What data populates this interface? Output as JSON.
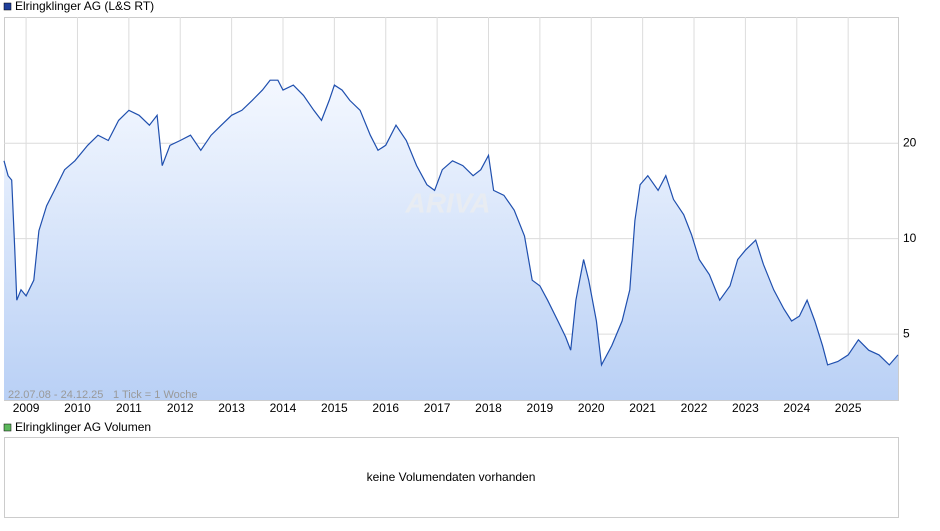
{
  "chart_data": {
    "type": "line",
    "series": [
      {
        "name": "Elringklinger AG (L&S RT)",
        "color": "#1f4fae",
        "values": [
          17.6,
          15.8,
          15.3,
          9.2,
          6.4,
          6.9,
          6.6,
          7.4,
          10.6,
          12.7,
          14.2,
          16.5,
          17.6,
          19.7,
          21.2,
          20.4,
          23.6,
          25.4,
          24.5,
          22.8,
          24.5,
          17.0,
          19.7,
          20.4,
          21.2,
          19.0,
          21.2,
          22.8,
          24.5,
          25.4,
          27.3,
          29.4,
          31.6,
          31.6,
          29.4,
          30.5,
          28.3,
          25.4,
          23.6,
          27.3,
          30.5,
          29.4,
          27.3,
          25.4,
          21.2,
          19.0,
          19.7,
          22.8,
          20.4,
          17.0,
          14.8,
          14.2,
          16.5,
          17.6,
          17.0,
          15.8,
          16.5,
          18.3,
          14.2,
          13.7,
          12.3,
          10.2,
          7.4,
          7.1,
          6.4,
          5.5,
          4.9,
          4.45,
          6.4,
          8.6,
          7.4,
          5.5,
          4.0,
          4.6,
          5.5,
          6.9,
          11.4,
          14.8,
          15.8,
          14.2,
          15.8,
          13.3,
          11.9,
          10.3,
          8.6,
          7.7,
          6.4,
          7.1,
          8.6,
          9.2,
          9.9,
          8.3,
          6.9,
          6.0,
          5.5,
          5.7,
          6.4,
          5.5,
          4.6,
          4.0,
          4.1,
          4.3,
          4.8,
          4.45,
          4.3,
          4.0,
          4.3
        ]
      }
    ],
    "x": [
      2008.57,
      2008.65,
      2008.72,
      2008.78,
      2008.82,
      2008.9,
      2009.0,
      2009.15,
      2009.25,
      2009.4,
      2009.55,
      2009.75,
      2009.95,
      2010.2,
      2010.4,
      2010.6,
      2010.8,
      2011.0,
      2011.2,
      2011.4,
      2011.55,
      2011.65,
      2011.8,
      2012.0,
      2012.2,
      2012.4,
      2012.6,
      2012.8,
      2013.0,
      2013.2,
      2013.4,
      2013.6,
      2013.75,
      2013.9,
      2014.0,
      2014.2,
      2014.4,
      2014.6,
      2014.75,
      2014.9,
      2015.0,
      2015.15,
      2015.3,
      2015.5,
      2015.7,
      2015.85,
      2016.0,
      2016.2,
      2016.4,
      2016.6,
      2016.8,
      2016.95,
      2017.1,
      2017.3,
      2017.5,
      2017.7,
      2017.85,
      2018.0,
      2018.1,
      2018.3,
      2018.5,
      2018.7,
      2018.85,
      2019.0,
      2019.15,
      2019.35,
      2019.5,
      2019.6,
      2019.7,
      2019.85,
      2019.95,
      2020.1,
      2020.2,
      2020.4,
      2020.6,
      2020.75,
      2020.85,
      2020.95,
      2021.1,
      2021.3,
      2021.45,
      2021.6,
      2021.8,
      2021.95,
      2022.1,
      2022.3,
      2022.5,
      2022.7,
      2022.85,
      2023.0,
      2023.2,
      2023.35,
      2023.55,
      2023.75,
      2023.9,
      2024.05,
      2024.2,
      2024.35,
      2024.5,
      2024.6,
      2024.8,
      2025.0,
      2025.2,
      2025.4,
      2025.6,
      2025.8,
      2025.97
    ],
    "xlim": [
      2008.57,
      2025.97
    ],
    "xticks": [
      2009,
      2010,
      2011,
      2012,
      2013,
      2014,
      2015,
      2016,
      2017,
      2018,
      2019,
      2020,
      2021,
      2022,
      2023,
      2024,
      2025
    ],
    "ylim": [
      3.1,
      50
    ],
    "yticks": [
      5,
      10,
      20
    ],
    "log_y": true,
    "grid": true,
    "date_range": "22.07.08 - 24.12.25",
    "tick_note": "1 Tick = 1 Woche",
    "watermark": "ARIVA"
  },
  "volume_panel": {
    "legend": "Elringklinger AG Volumen",
    "message": "keine Volumendaten vorhanden"
  }
}
